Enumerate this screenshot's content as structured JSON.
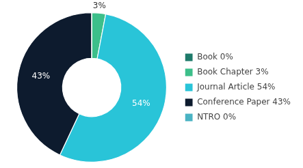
{
  "chart_data": {
    "type": "doughnut",
    "categories": [
      "Book 0%",
      "Book Chapter 3%",
      "Journal Article 54%",
      "Conference Paper 43%",
      "NTRO 0%"
    ],
    "values": [
      0.001,
      3,
      54,
      43,
      0.001
    ],
    "value_labels": [
      null,
      "3%",
      "54%",
      "43%",
      null
    ],
    "colors": [
      "#1e7a6a",
      "#3dbf8a",
      "#29c4d8",
      "#0d1b2e",
      "#4ab3c3"
    ],
    "data_labels": true,
    "legend": "right"
  }
}
